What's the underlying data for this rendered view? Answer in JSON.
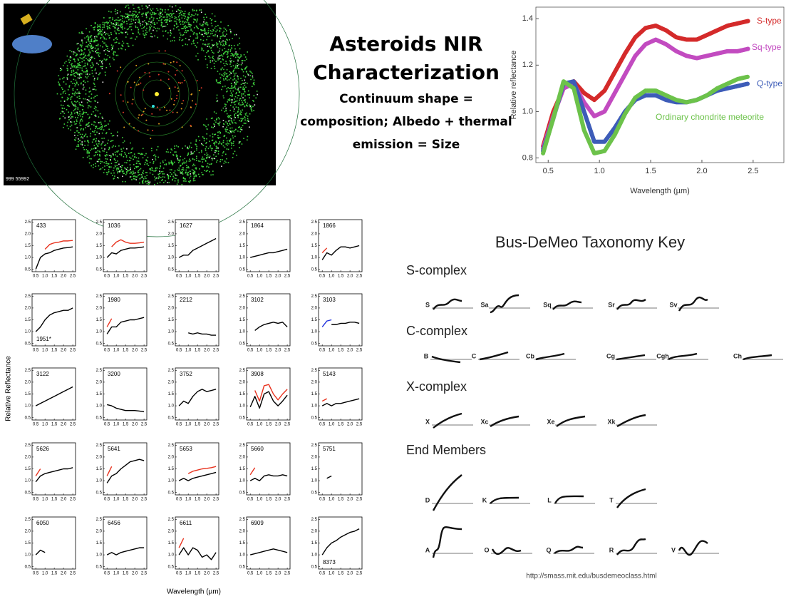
{
  "title": "Asteroids NIR Characterization",
  "subtitle": "Continuum shape = composition; Albedo + thermal emission = Size",
  "orbit_image": {
    "caption": "999 55992"
  },
  "chart_data": [
    {
      "type": "line",
      "ylabel": "Relative reflectance",
      "xlabel": "Wavelength (µm)",
      "xlim": [
        0.38,
        2.8
      ],
      "ylim": [
        0.78,
        1.45
      ],
      "xticks": [
        0.5,
        {
          "value": 1,
          "label": "1.0"
        },
        1.5,
        {
          "value": 2,
          "label": "2.0"
        },
        2.5
      ],
      "yticks": [
        0.8,
        {
          "value": 1,
          "label": "1.0"
        },
        1.2,
        1.4
      ],
      "x": [
        0.45,
        0.55,
        0.65,
        0.75,
        0.85,
        0.95,
        1.05,
        1.15,
        1.25,
        1.35,
        1.45,
        1.55,
        1.65,
        1.75,
        1.85,
        1.95,
        2.05,
        2.15,
        2.25,
        2.35,
        2.45
      ],
      "series": [
        {
          "name": "S-type",
          "color": "#d42a2a",
          "values": [
            0.85,
            1.0,
            1.1,
            1.13,
            1.08,
            1.05,
            1.09,
            1.17,
            1.25,
            1.32,
            1.36,
            1.37,
            1.35,
            1.32,
            1.31,
            1.31,
            1.33,
            1.35,
            1.37,
            1.38,
            1.39
          ]
        },
        {
          "name": "Sq-type",
          "color": "#c24bc0",
          "values": [
            0.84,
            0.98,
            1.1,
            1.12,
            1.04,
            0.98,
            1.0,
            1.08,
            1.16,
            1.24,
            1.29,
            1.31,
            1.29,
            1.26,
            1.24,
            1.23,
            1.24,
            1.25,
            1.26,
            1.26,
            1.27
          ]
        },
        {
          "name": "Q-type",
          "color": "#3d5cb8",
          "values": [
            0.83,
            0.97,
            1.12,
            1.13,
            1.0,
            0.87,
            0.87,
            0.93,
            1.0,
            1.05,
            1.07,
            1.07,
            1.05,
            1.04,
            1.04,
            1.05,
            1.07,
            1.09,
            1.1,
            1.11,
            1.12
          ]
        },
        {
          "name": "Ordinary chondrite meteorite",
          "color": "#6cc24a",
          "values": [
            0.82,
            0.97,
            1.13,
            1.1,
            0.92,
            0.82,
            0.83,
            0.9,
            0.99,
            1.06,
            1.09,
            1.09,
            1.07,
            1.05,
            1.04,
            1.05,
            1.07,
            1.1,
            1.12,
            1.14,
            1.15
          ]
        }
      ]
    },
    {
      "type": "line",
      "ylabel": "Relative Reflectance",
      "xlabel": "Wavelength (µm)",
      "xlim": [
        0.3,
        2.65
      ],
      "ylim": [
        0.4,
        2.6
      ],
      "xticks": [
        0.5,
        {
          "value": 1,
          "label": "1.0"
        },
        1.5,
        {
          "value": 2,
          "label": "2.0"
        },
        2.5
      ],
      "yticks": [
        0.5,
        {
          "value": 1,
          "label": "1.0"
        },
        1.5,
        {
          "value": 2,
          "label": "2.0"
        },
        2.5
      ],
      "x": [
        0.5,
        0.75,
        1.0,
        1.25,
        1.5,
        1.75,
        2.0,
        2.25,
        2.5
      ],
      "panels": [
        {
          "name": "433",
          "values": [
            0.5,
            1.0,
            1.15,
            1.2,
            1.3,
            1.35,
            1.4,
            1.42,
            1.45
          ],
          "overlay": [
            null,
            null,
            1.35,
            1.55,
            1.62,
            1.65,
            1.7,
            1.7,
            1.72
          ],
          "overlay_color": "#e8321e"
        },
        {
          "name": "1036",
          "values": [
            1.0,
            1.2,
            1.15,
            1.3,
            1.35,
            1.4,
            1.4,
            1.42,
            1.45
          ],
          "overlay": [
            null,
            1.45,
            1.65,
            1.75,
            1.65,
            1.6,
            1.6,
            1.62,
            1.65
          ],
          "overlay_color": "#e8321e"
        },
        {
          "name": "1627",
          "values": [
            1.0,
            1.1,
            1.1,
            1.3,
            1.4,
            1.5,
            1.6,
            1.7,
            1.8
          ]
        },
        {
          "name": "1864",
          "values": [
            1.0,
            1.05,
            1.1,
            1.15,
            1.2,
            1.2,
            1.25,
            1.3,
            1.35
          ]
        },
        {
          "name": "1866",
          "values": [
            0.9,
            1.2,
            1.1,
            1.3,
            1.45,
            1.45,
            1.4,
            1.45,
            1.5
          ],
          "overlay": [
            1.2,
            1.4,
            null,
            null,
            null,
            null,
            null,
            null,
            null
          ],
          "overlay_color": "#e8321e"
        },
        {
          "name": "1951*",
          "label_bottom": true,
          "values": [
            1.0,
            1.2,
            1.5,
            1.7,
            1.8,
            1.85,
            1.9,
            1.9,
            2.0
          ]
        },
        {
          "name": "1980",
          "values": [
            0.9,
            1.2,
            1.2,
            1.4,
            1.45,
            1.5,
            1.5,
            1.55,
            1.6
          ],
          "overlay": [
            1.2,
            1.55,
            null,
            null,
            null,
            null,
            null,
            null,
            null
          ],
          "overlay_color": "#e8321e"
        },
        {
          "name": "2212",
          "values": [
            null,
            null,
            0.95,
            0.9,
            0.95,
            0.9,
            0.9,
            0.85,
            0.85
          ]
        },
        {
          "name": "3102",
          "values": [
            null,
            1.05,
            1.2,
            1.3,
            1.35,
            1.4,
            1.35,
            1.4,
            1.2
          ]
        },
        {
          "name": "3103",
          "values": [
            null,
            null,
            1.3,
            1.3,
            1.35,
            1.35,
            1.4,
            1.4,
            1.35
          ],
          "overlay": [
            1.2,
            1.45,
            1.5,
            null,
            null,
            null,
            null,
            null,
            null
          ],
          "overlay_color": "#2233dd"
        },
        {
          "name": "3122",
          "values": [
            1.0,
            1.1,
            1.2,
            1.3,
            1.4,
            1.5,
            1.6,
            1.7,
            1.8
          ]
        },
        {
          "name": "3200",
          "values": [
            1.05,
            1.0,
            0.9,
            0.85,
            0.8,
            0.8,
            0.8,
            0.78,
            0.75
          ]
        },
        {
          "name": "3752",
          "values": [
            1.0,
            1.2,
            1.1,
            1.4,
            1.6,
            1.7,
            1.6,
            1.65,
            1.7
          ]
        },
        {
          "name": "3908",
          "values": [
            0.95,
            1.4,
            0.9,
            1.5,
            1.6,
            1.2,
            1.0,
            1.2,
            1.45
          ],
          "overlay": [
            null,
            1.65,
            1.2,
            1.85,
            1.9,
            1.5,
            1.25,
            1.5,
            1.7
          ],
          "overlay_color": "#e8321e"
        },
        {
          "name": "5143",
          "values": [
            1.0,
            1.1,
            1.0,
            1.1,
            1.1,
            1.15,
            1.2,
            1.25,
            1.3
          ],
          "overlay": [
            1.2,
            1.3,
            null,
            null,
            null,
            null,
            null,
            null,
            null
          ],
          "overlay_color": "#e8321e"
        },
        {
          "name": "5626",
          "values": [
            0.95,
            1.2,
            1.3,
            1.35,
            1.4,
            1.45,
            1.5,
            1.5,
            1.55
          ],
          "overlay": [
            1.2,
            1.5,
            null,
            null,
            null,
            null,
            null,
            null,
            null
          ],
          "overlay_color": "#e8321e"
        },
        {
          "name": "5641",
          "values": [
            0.9,
            1.2,
            1.3,
            1.5,
            1.65,
            1.8,
            1.85,
            1.9,
            1.85
          ],
          "overlay": [
            1.2,
            1.6,
            null,
            null,
            null,
            null,
            null,
            null,
            null
          ],
          "overlay_color": "#e8321e"
        },
        {
          "name": "5653",
          "values": [
            1.0,
            1.1,
            1.0,
            1.1,
            1.15,
            1.2,
            1.25,
            1.3,
            1.35
          ],
          "overlay": [
            null,
            null,
            1.3,
            1.4,
            1.45,
            1.5,
            1.52,
            1.55,
            1.6
          ],
          "overlay_color": "#e8321e"
        },
        {
          "name": "5660",
          "values": [
            1.0,
            1.1,
            1.0,
            1.2,
            1.25,
            1.2,
            1.2,
            1.25,
            1.2
          ],
          "overlay": [
            1.25,
            1.55,
            null,
            null,
            null,
            null,
            null,
            null,
            null
          ],
          "overlay_color": "#e8321e"
        },
        {
          "name": "5751",
          "values": [
            null,
            1.1,
            1.2,
            null,
            null,
            null,
            null,
            null,
            null
          ]
        },
        {
          "name": "6050",
          "values": [
            1.0,
            1.2,
            1.1,
            null,
            null,
            null,
            null,
            null,
            null
          ]
        },
        {
          "name": "6456",
          "values": [
            1.0,
            1.1,
            1.0,
            1.1,
            1.15,
            1.2,
            1.25,
            1.3,
            1.3
          ]
        },
        {
          "name": "6611",
          "values": [
            1.0,
            1.3,
            1.0,
            1.3,
            1.2,
            0.9,
            1.0,
            0.8,
            1.1
          ],
          "overlay": [
            1.3,
            1.7,
            null,
            null,
            null,
            null,
            null,
            null,
            null
          ],
          "overlay_color": "#e8321e"
        },
        {
          "name": "6909",
          "values": [
            1.0,
            1.05,
            1.1,
            1.15,
            1.2,
            1.25,
            1.2,
            1.15,
            1.1
          ]
        },
        {
          "name": "8373",
          "label_bottom": true,
          "values": [
            1.0,
            1.3,
            1.5,
            1.6,
            1.75,
            1.85,
            1.95,
            2.0,
            2.1
          ]
        }
      ]
    }
  ],
  "taxonomy_key": {
    "title": "Bus-DeMeo Taxonomy Key",
    "groups": [
      {
        "name": "S-complex",
        "classes": [
          "S",
          "Sa",
          "Sq",
          "Sr",
          "Sv"
        ]
      },
      {
        "name": "C-complex",
        "classes": [
          "B",
          "C",
          "Cb",
          "Cg",
          "Cgh",
          "Ch"
        ]
      },
      {
        "name": "X-complex",
        "classes": [
          "X",
          "Xc",
          "Xe",
          "Xk"
        ]
      },
      {
        "name": "End Members",
        "classes": [
          "D",
          "K",
          "L",
          "T",
          "A",
          "O",
          "Q",
          "R",
          "V"
        ]
      }
    ],
    "url": "http://smass.mit.edu/busdemeoclass.html"
  }
}
